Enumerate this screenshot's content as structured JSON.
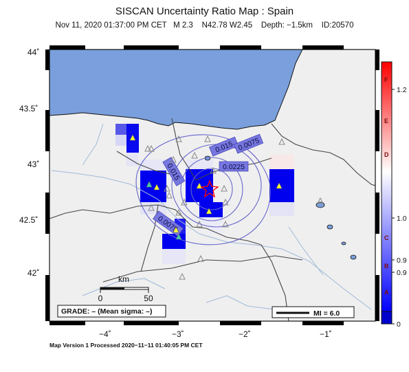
{
  "title": "SISCAN Uncertainty Ratio Map : Spain",
  "subtitle": "Nov 11, 2020 01:37:00 PM CET   M 2.3    N42.78 W2.45    Depth: −1.5km    ID:20570",
  "footer": "Map Version 1 Processed 2020−11−11 01:40:05 PM CET",
  "axes": {
    "lat_ticks": [
      "44˚",
      "43.5˚",
      "43˚",
      "42.5˚",
      "42˚"
    ],
    "lon_ticks": [
      "−4˚",
      "−3˚",
      "−2˚",
      "−1˚"
    ]
  },
  "contour_labels": [
    "0.015",
    "0.0075",
    "0.0225",
    "0.015",
    "0.0075"
  ],
  "scalebar": {
    "unit": "km",
    "start": "0",
    "end": "50"
  },
  "grade_box": "GRADE: – (Mean sigma: –)",
  "mi_legend": "MI = 6.0",
  "colorbar": {
    "letters": [
      "F",
      "E",
      "D",
      "C",
      "B",
      "A"
    ],
    "ticks": [
      "1.2",
      "1.0",
      "0.9",
      "0.9",
      "0"
    ]
  },
  "colors": {
    "sea": "#7a9fdc",
    "land": "#efefef",
    "high": "#ff0000",
    "mid": "#ffffff",
    "low": "#0000ff",
    "epicenter": "#ff0000",
    "contour": "#6666cc"
  },
  "icons": [
    "station-triangle-icon",
    "epicenter-star-icon"
  ]
}
